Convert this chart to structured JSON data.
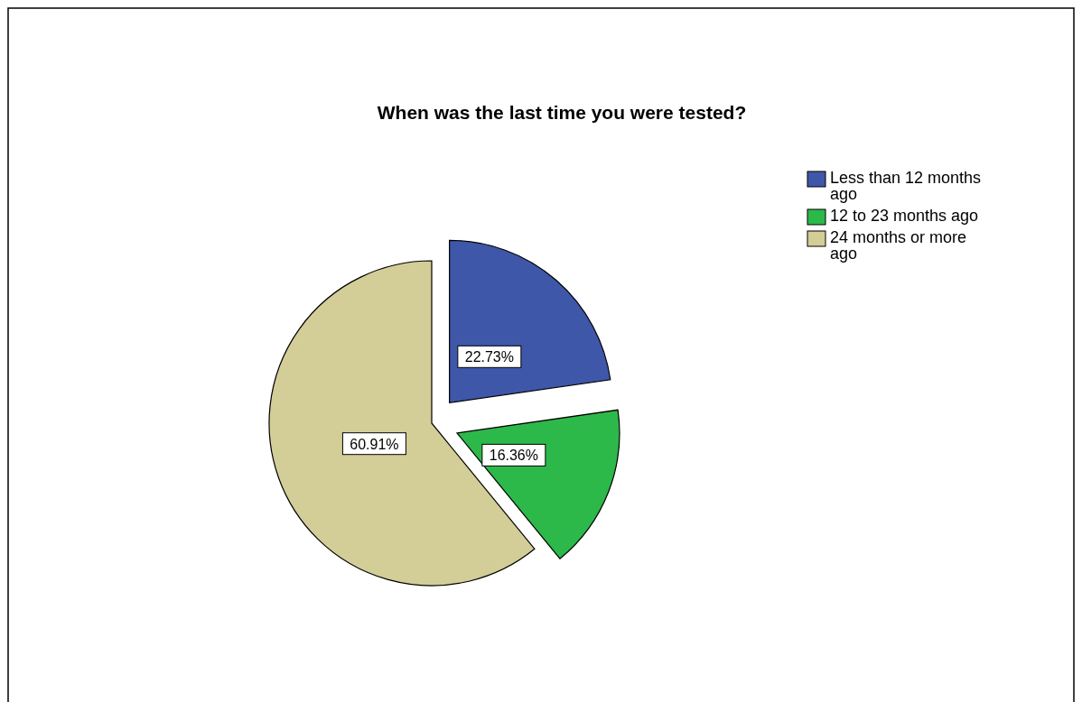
{
  "chart_data": {
    "type": "pie",
    "title": "When was the last time you were tested?",
    "categories": [
      "Less than 12 months ago",
      "12 to 23 months ago",
      "24 months or more ago"
    ],
    "values": [
      22.73,
      16.36,
      60.91
    ],
    "value_labels": [
      "22.73%",
      "16.36%",
      "60.91%"
    ],
    "colors": [
      "#3f57a9",
      "#2db84a",
      "#d3cd97"
    ],
    "legend": "top right"
  }
}
